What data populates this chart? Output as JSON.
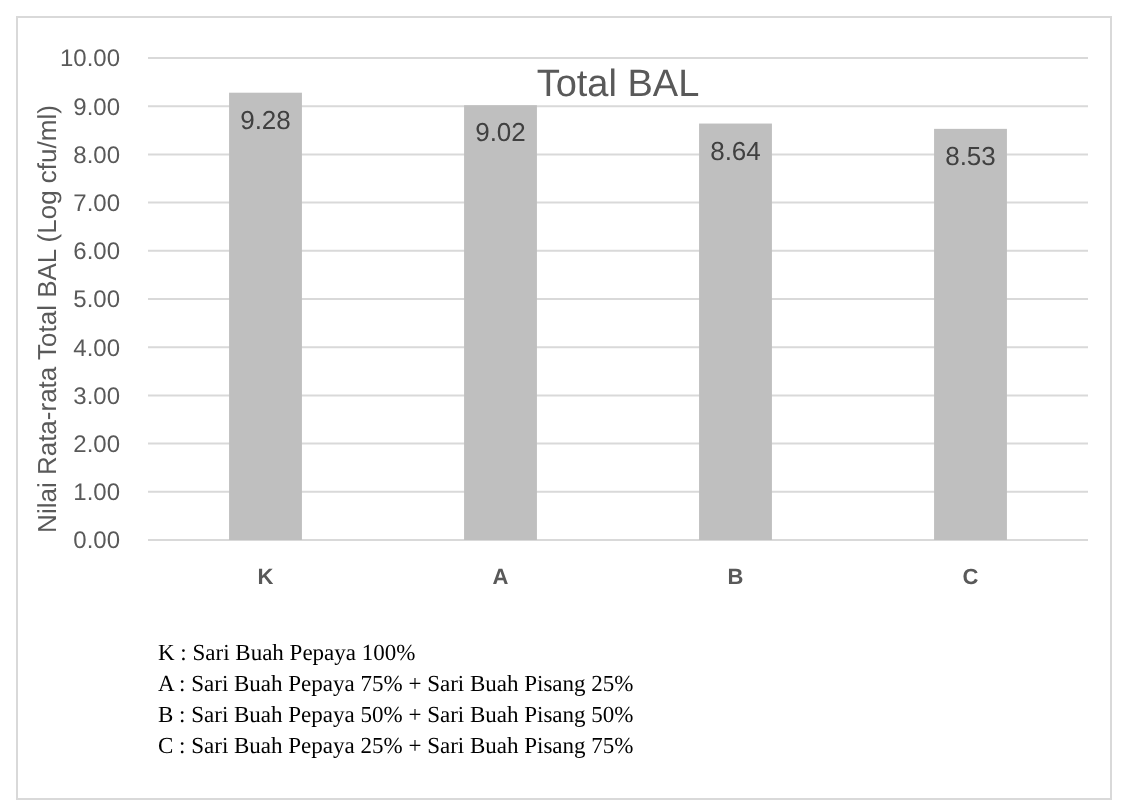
{
  "chart_data": {
    "type": "bar",
    "title": "Total BAL",
    "ylabel": "Nilai Rata-rata Total BAL (Log cfu/ml)",
    "categories": [
      "K",
      "A",
      "B",
      "C"
    ],
    "values": [
      9.28,
      9.02,
      8.64,
      8.53
    ],
    "color": "#bfbfbf",
    "data_labels": true,
    "grid": "y",
    "ylim": [
      0,
      10
    ],
    "yticks": [
      {
        "value": 0,
        "label": "0.00"
      },
      {
        "value": 1,
        "label": "1.00"
      },
      {
        "value": 2,
        "label": "2.00"
      },
      {
        "value": 3,
        "label": "3.00"
      },
      {
        "value": 4,
        "label": "4.00"
      },
      {
        "value": 5,
        "label": "5.00"
      },
      {
        "value": 6,
        "label": "6.00"
      },
      {
        "value": 7,
        "label": "7.00"
      },
      {
        "value": 8,
        "label": "8.00"
      },
      {
        "value": 9,
        "label": "9.00"
      },
      {
        "value": 10,
        "label": "10.00"
      }
    ],
    "annotations": [
      "K : Sari Buah Pepaya 100%",
      "A : Sari Buah Pepaya 75% + Sari Buah Pisang 25%",
      "B : Sari Buah Pepaya 50% + Sari Buah Pisang 50%",
      "C : Sari Buah Pepaya 25% + Sari Buah Pisang 75%"
    ]
  }
}
